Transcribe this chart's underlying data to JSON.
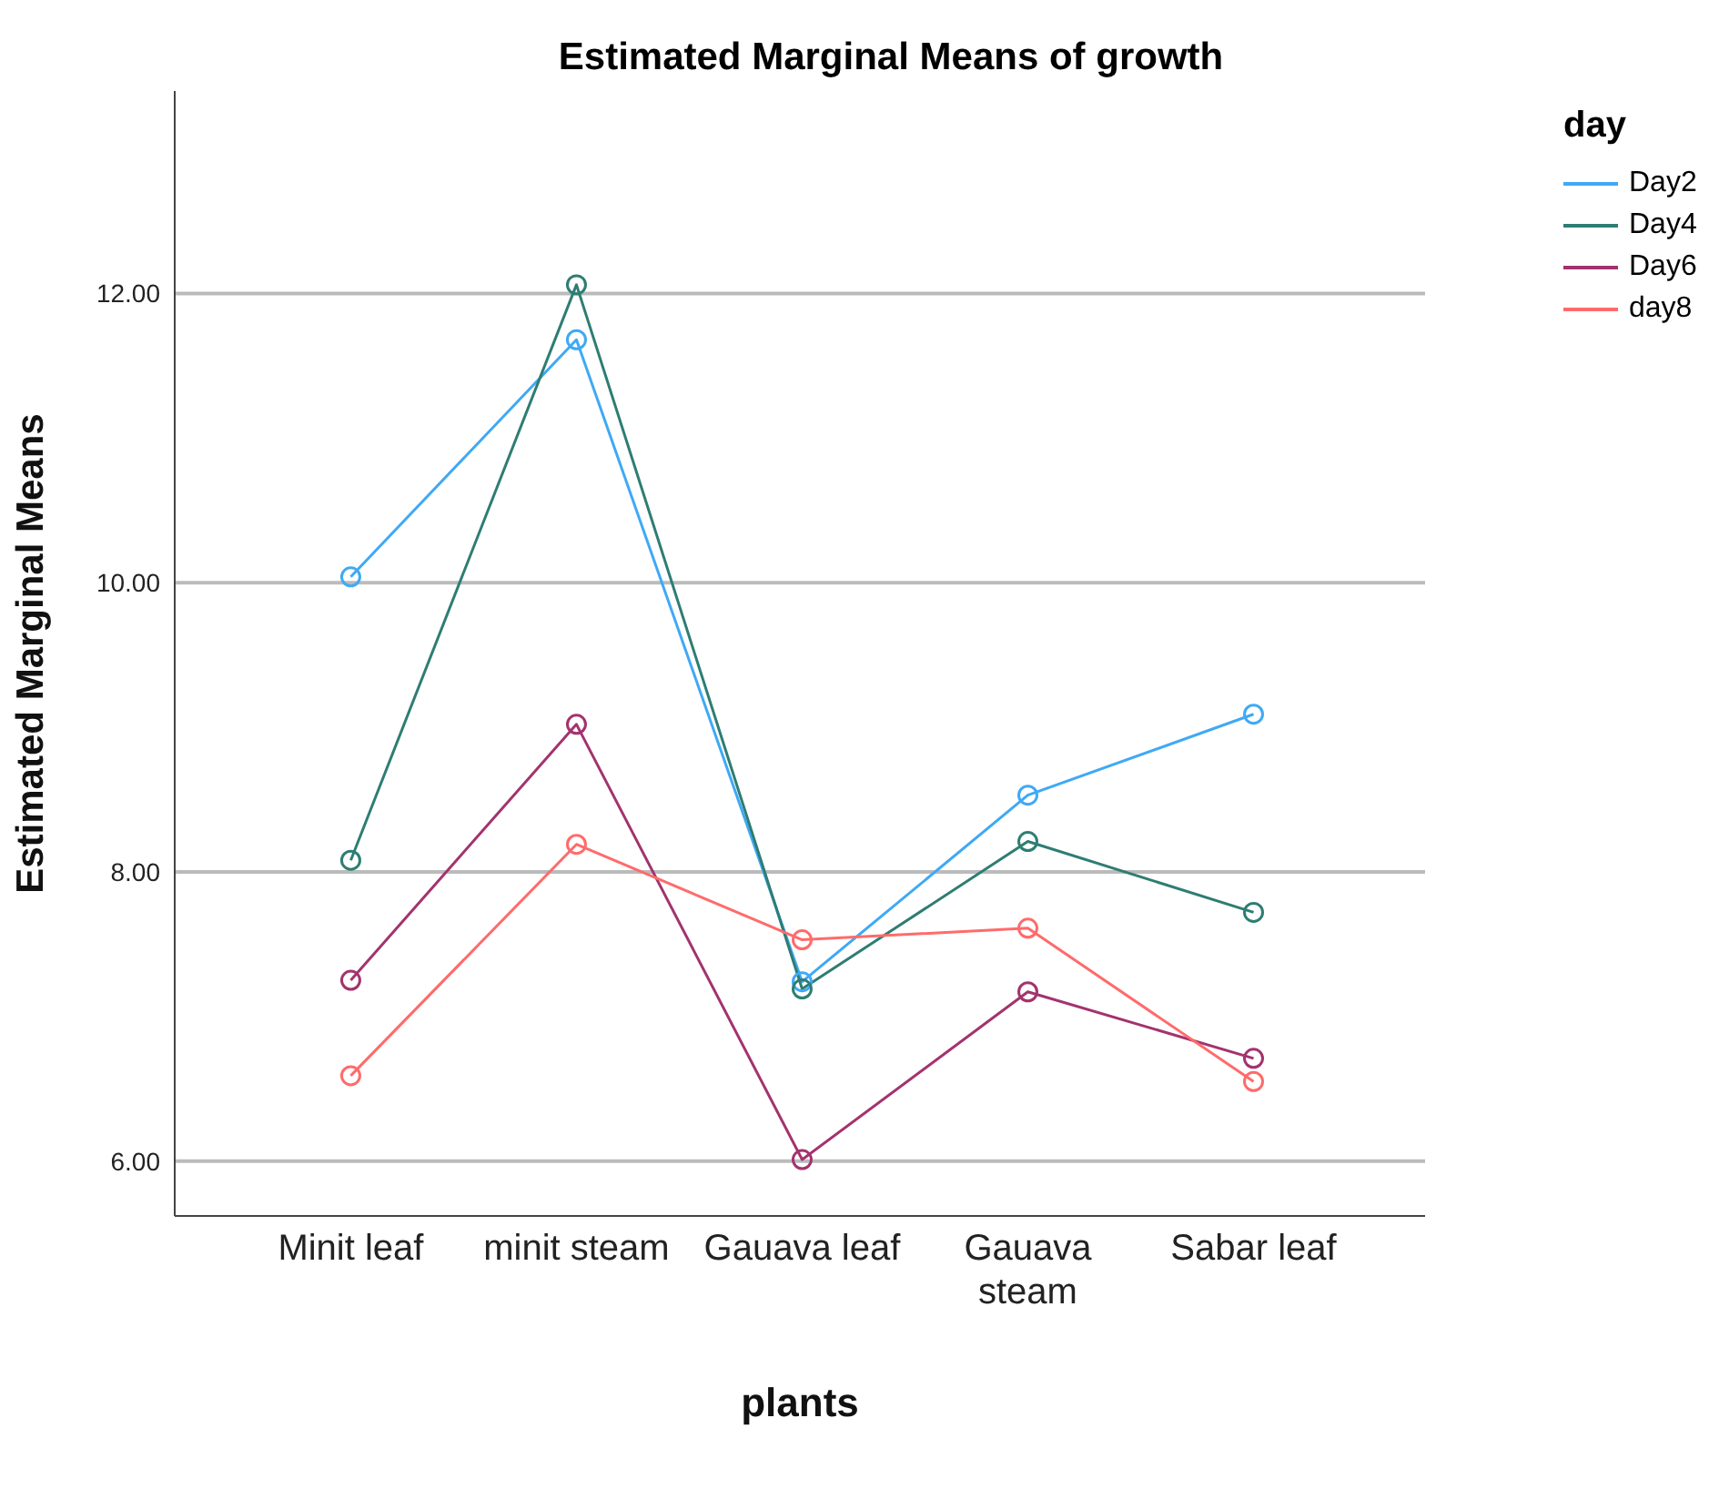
{
  "chart_data": {
    "type": "line",
    "title": "Estimated Marginal Means of growth",
    "xlabel": "plants",
    "ylabel": "Estimated Marginal Means",
    "legend_title": "day",
    "categories": [
      "Minit leaf",
      "minit steam",
      "Gauava leaf",
      "Gauava steam",
      "Sabar leaf"
    ],
    "series": [
      {
        "name": "Day2",
        "color": "#3fa9f5",
        "values": [
          10.04,
          11.68,
          7.24,
          8.53,
          9.09
        ]
      },
      {
        "name": "Day4",
        "color": "#2e7d73",
        "values": [
          8.08,
          12.06,
          7.19,
          8.21,
          7.72
        ]
      },
      {
        "name": "Day6",
        "color": "#a3336e",
        "values": [
          7.25,
          9.02,
          6.01,
          7.17,
          6.71
        ]
      },
      {
        "name": "day8",
        "color": "#ff6b6b",
        "values": [
          6.59,
          8.19,
          7.53,
          7.61,
          6.55
        ]
      }
    ],
    "ylim": [
      5.62,
      13.4
    ],
    "yticks": [
      {
        "value": 6,
        "label": "6.00"
      },
      {
        "value": 8,
        "label": "8.00"
      },
      {
        "value": 10,
        "label": "10.00"
      },
      {
        "value": 12,
        "label": "12.00"
      }
    ],
    "grid": "y",
    "legend": "top right",
    "marker": "circle",
    "line_style": "solid"
  }
}
